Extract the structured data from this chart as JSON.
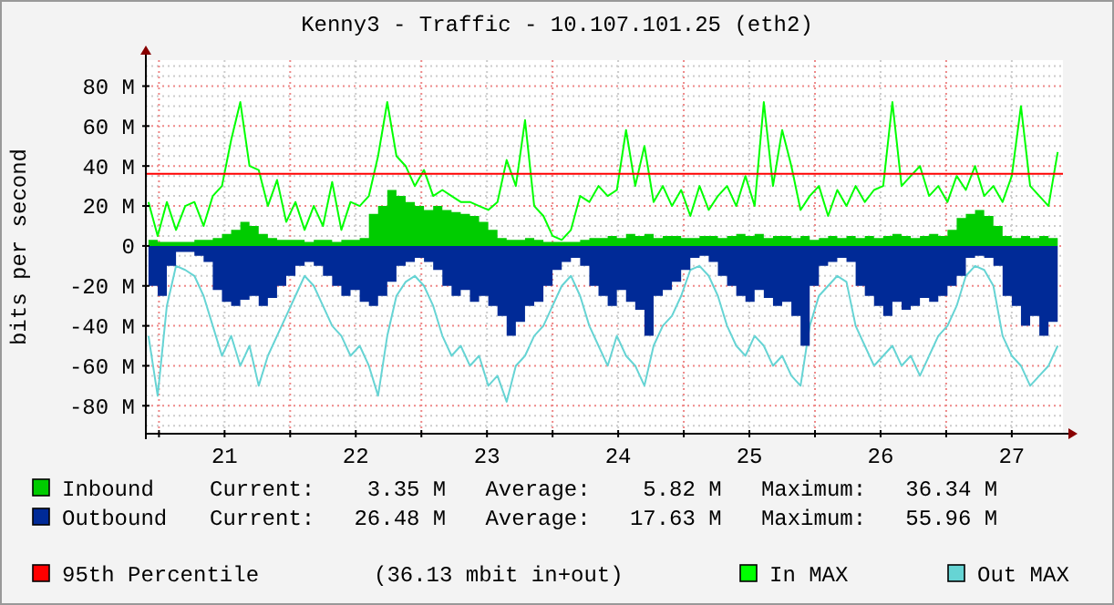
{
  "chart_data": {
    "type": "area",
    "title": "Kenny3 - Traffic - 10.107.101.25 (eth2)",
    "ylabel": "bits per second",
    "x": [
      20.42,
      20.49,
      20.56,
      20.63,
      20.7,
      20.77,
      20.84,
      20.91,
      20.98,
      21.05,
      21.12,
      21.19,
      21.26,
      21.33,
      21.4,
      21.47,
      21.54,
      21.61,
      21.68,
      21.75,
      21.82,
      21.89,
      21.96,
      22.03,
      22.1,
      22.17,
      22.24,
      22.31,
      22.38,
      22.45,
      22.52,
      22.59,
      22.66,
      22.73,
      22.8,
      22.87,
      22.94,
      23.01,
      23.08,
      23.15,
      23.22,
      23.29,
      23.36,
      23.43,
      23.5,
      23.57,
      23.64,
      23.71,
      23.78,
      23.85,
      23.92,
      23.99,
      24.06,
      24.13,
      24.2,
      24.27,
      24.34,
      24.41,
      24.48,
      24.55,
      24.62,
      24.69,
      24.76,
      24.83,
      24.9,
      24.97,
      25.04,
      25.11,
      25.18,
      25.25,
      25.32,
      25.39,
      25.46,
      25.53,
      25.6,
      25.67,
      25.74,
      25.81,
      25.88,
      25.95,
      26.02,
      26.09,
      26.16,
      26.23,
      26.3,
      26.37,
      26.44,
      26.51,
      26.58,
      26.65,
      26.72,
      26.79,
      26.86,
      26.93,
      27.0,
      27.07,
      27.14,
      27.21,
      27.28,
      27.35
    ],
    "xlim": [
      20.4,
      27.39
    ],
    "xticks": [
      {
        "value": 20.5,
        "label": null
      },
      21,
      {
        "value": 21.5,
        "label": null
      },
      22,
      {
        "value": 22.5,
        "label": null
      },
      23,
      {
        "value": 23.5,
        "label": null
      },
      24,
      {
        "value": 24.5,
        "label": null
      },
      25,
      {
        "value": 25.5,
        "label": null
      },
      26,
      {
        "value": 26.5,
        "label": null
      },
      27
    ],
    "ylim": [
      -94,
      93
    ],
    "yticks": [
      {
        "value": -80,
        "label": "-80 M"
      },
      {
        "value": -60,
        "label": "-60 M"
      },
      {
        "value": -40,
        "label": "-40 M"
      },
      {
        "value": -20,
        "label": "-20 M"
      },
      0,
      {
        "value": 20,
        "label": "20 M"
      },
      {
        "value": 40,
        "label": "40 M"
      },
      {
        "value": 60,
        "label": "60 M"
      },
      {
        "value": 80,
        "label": "80 M"
      }
    ],
    "grid": true,
    "legend": "bottom",
    "series": [
      {
        "name": "Inbound",
        "color": "#00cc00",
        "values": [
          3,
          2,
          2,
          2,
          2,
          3,
          3,
          4,
          6,
          8,
          12,
          10,
          6,
          4,
          3,
          3,
          3,
          2,
          3,
          3,
          2,
          3,
          3,
          4,
          16,
          20,
          28,
          25,
          22,
          20,
          18,
          20,
          18,
          17,
          16,
          15,
          12,
          8,
          4,
          3,
          3,
          4,
          3,
          2,
          2,
          2,
          2,
          3,
          4,
          4,
          5,
          4,
          6,
          5,
          6,
          4,
          5,
          5,
          4,
          4,
          5,
          5,
          4,
          5,
          6,
          5,
          6,
          4,
          5,
          5,
          4,
          5,
          3,
          4,
          5,
          4,
          5,
          4,
          5,
          4,
          5,
          6,
          5,
          4,
          5,
          6,
          5,
          8,
          14,
          16,
          18,
          15,
          10,
          5,
          4,
          5,
          4,
          5,
          4,
          5
        ]
      },
      {
        "name": "Outbound",
        "color": "#002a97",
        "values": [
          -20,
          -25,
          -10,
          -3,
          -3,
          -5,
          -8,
          -22,
          -28,
          -30,
          -27,
          -25,
          -30,
          -26,
          -20,
          -15,
          -10,
          -8,
          -10,
          -15,
          -20,
          -25,
          -22,
          -28,
          -30,
          -25,
          -18,
          -10,
          -8,
          -6,
          -8,
          -12,
          -20,
          -25,
          -22,
          -28,
          -25,
          -30,
          -35,
          -45,
          -38,
          -30,
          -28,
          -20,
          -12,
          -8,
          -6,
          -10,
          -20,
          -25,
          -30,
          -22,
          -28,
          -32,
          -45,
          -25,
          -22,
          -18,
          -12,
          -6,
          -5,
          -8,
          -15,
          -20,
          -25,
          -28,
          -22,
          -26,
          -30,
          -28,
          -35,
          -50,
          -20,
          -10,
          -8,
          -6,
          -8,
          -20,
          -25,
          -30,
          -35,
          -28,
          -32,
          -30,
          -26,
          -28,
          -25,
          -20,
          -15,
          -6,
          -5,
          -6,
          -10,
          -25,
          -30,
          -40,
          -35,
          -45,
          -38,
          -35
        ]
      },
      {
        "name": "In MAX",
        "type": "line",
        "color": "#00ff00",
        "values": [
          22,
          5,
          22,
          8,
          20,
          22,
          10,
          25,
          30,
          53,
          72,
          40,
          38,
          20,
          33,
          12,
          22,
          8,
          20,
          10,
          32,
          8,
          22,
          20,
          25,
          45,
          72,
          45,
          40,
          30,
          38,
          25,
          28,
          25,
          22,
          22,
          20,
          18,
          22,
          43,
          30,
          63,
          20,
          15,
          5,
          3,
          8,
          25,
          22,
          30,
          25,
          28,
          58,
          30,
          50,
          22,
          30,
          20,
          28,
          15,
          30,
          18,
          25,
          30,
          20,
          35,
          20,
          72,
          30,
          58,
          40,
          18,
          25,
          30,
          15,
          28,
          20,
          30,
          22,
          28,
          30,
          72,
          30,
          35,
          40,
          25,
          30,
          22,
          35,
          28,
          40,
          25,
          30,
          22,
          35,
          70,
          30,
          25,
          20,
          47
        ]
      },
      {
        "name": "Out MAX",
        "type": "line",
        "color": "#66d4d4",
        "values": [
          -45,
          -75,
          -30,
          -10,
          -12,
          -15,
          -25,
          -40,
          -55,
          -45,
          -60,
          -50,
          -70,
          -55,
          -45,
          -35,
          -25,
          -15,
          -20,
          -30,
          -40,
          -45,
          -55,
          -50,
          -60,
          -75,
          -45,
          -25,
          -18,
          -15,
          -20,
          -30,
          -45,
          -55,
          -50,
          -60,
          -55,
          -70,
          -65,
          -78,
          -60,
          -55,
          -45,
          -40,
          -30,
          -20,
          -15,
          -25,
          -40,
          -50,
          -60,
          -45,
          -55,
          -60,
          -70,
          -50,
          -40,
          -35,
          -25,
          -12,
          -10,
          -15,
          -25,
          -40,
          -50,
          -55,
          -45,
          -50,
          -60,
          -55,
          -65,
          -70,
          -40,
          -25,
          -20,
          -15,
          -18,
          -40,
          -50,
          -60,
          -55,
          -50,
          -60,
          -55,
          -65,
          -55,
          -45,
          -40,
          -30,
          -15,
          -10,
          -12,
          -20,
          -45,
          -55,
          -60,
          -70,
          -65,
          -60,
          -50
        ]
      }
    ],
    "ref_lines": [
      {
        "axis": "y",
        "value": 36.13,
        "label": "95th Percentile",
        "color": "#ff0000"
      }
    ],
    "annotations": [
      "Current:    3.35 M   Average:    5.82 M   Maximum:   36.34 M",
      "Current:   26.48 M   Average:   17.63 M   Maximum:   55.96 M",
      "(36.13 mbit in+out)"
    ]
  }
}
